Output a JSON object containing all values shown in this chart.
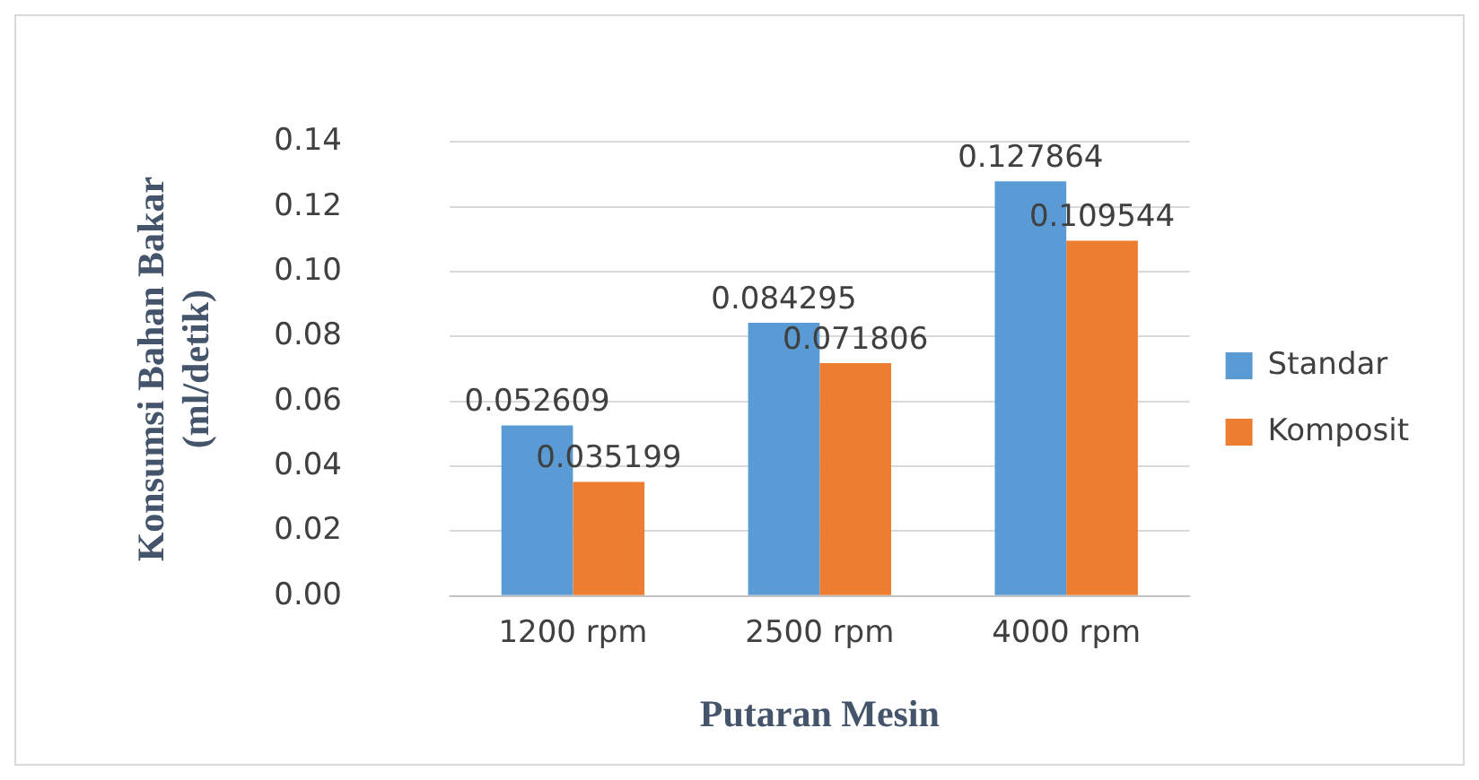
{
  "chart_data": {
    "type": "bar",
    "xlabel": "Putaran Mesin",
    "ylabel": "Konsumsi Bahan Bakar\n(ml/detik)",
    "categories": [
      "1200 rpm",
      "2500 rpm",
      "4000 rpm"
    ],
    "series": [
      {
        "name": "Standar",
        "color": "#5b9bd5",
        "values": [
          0.052609,
          0.084295,
          0.127864
        ]
      },
      {
        "name": "Komposit",
        "color": "#ed7d31",
        "values": [
          0.035199,
          0.071806,
          0.109544
        ]
      }
    ],
    "ylim": [
      0,
      0.14
    ],
    "yticks": [
      {
        "value": 0,
        "label": "0.00"
      },
      {
        "value": 0.02,
        "label": "0.02"
      },
      {
        "value": 0.04,
        "label": "0.04"
      },
      {
        "value": 0.06,
        "label": "0.06"
      },
      {
        "value": 0.08,
        "label": "0.08"
      },
      {
        "value": 0.1,
        "label": "0.10"
      },
      {
        "value": 0.12,
        "label": "0.12"
      },
      {
        "value": 0.14,
        "label": "0.14"
      }
    ],
    "grid": "y",
    "legend": "right",
    "data_labels": true
  }
}
